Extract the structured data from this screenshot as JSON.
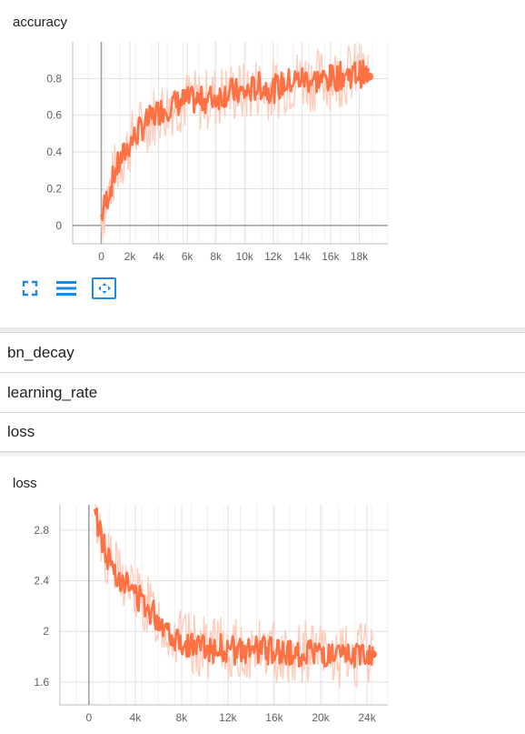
{
  "cards": [
    {
      "title": "accuracy",
      "chart_data": {
        "type": "line",
        "xlabel": "",
        "ylabel": "",
        "x_ticks": [
          "0",
          "2k",
          "4k",
          "6k",
          "8k",
          "10k",
          "12k",
          "14k",
          "16k",
          "18k"
        ],
        "y_ticks": [
          "0",
          "0.2",
          "0.4",
          "0.6",
          "0.8"
        ],
        "xlim": [
          -2000,
          20000
        ],
        "ylim": [
          -0.1,
          1.0
        ],
        "series": [
          {
            "color": "#ff7043",
            "raw_color": "#ffccbc",
            "x": [
              0,
              1000,
              2000,
              3000,
              4000,
              5000,
              6000,
              7000,
              8000,
              9000,
              10000,
              11000,
              12000,
              13000,
              14000,
              15000,
              16000,
              17000,
              18000,
              18700
            ],
            "y": [
              0.05,
              0.3,
              0.45,
              0.55,
              0.62,
              0.66,
              0.68,
              0.68,
              0.7,
              0.73,
              0.72,
              0.76,
              0.74,
              0.78,
              0.8,
              0.79,
              0.8,
              0.82,
              0.83,
              0.81
            ]
          }
        ]
      },
      "toolbar": {
        "expand_icon": "fullscreen-icon",
        "lines_icon": "data-lines-icon",
        "fit_icon": "fit-domain-icon"
      }
    },
    {
      "title": "loss",
      "chart_data": {
        "type": "line",
        "xlabel": "",
        "ylabel": "",
        "x_ticks": [
          "0",
          "4k",
          "8k",
          "12k",
          "16k",
          "20k",
          "24k"
        ],
        "y_ticks": [
          "1.6",
          "2",
          "2.4",
          "2.8"
        ],
        "xlim": [
          -2500,
          25800
        ],
        "ylim": [
          1.42,
          3.0
        ],
        "series": [
          {
            "color": "#ff7043",
            "raw_color": "#ffccbc",
            "x": [
              500,
              1500,
              2500,
              3500,
              4500,
              5500,
              6500,
              7500,
              8500,
              9500,
              10500,
              11500,
              12500,
              13500,
              14500,
              15500,
              16500,
              17500,
              18500,
              19500,
              20500,
              21500,
              22500,
              23500,
              24500
            ],
            "y": [
              2.95,
              2.6,
              2.45,
              2.35,
              2.25,
              2.15,
              2.05,
              1.95,
              1.9,
              1.88,
              1.86,
              1.87,
              1.85,
              1.83,
              1.86,
              1.85,
              1.84,
              1.82,
              1.83,
              1.85,
              1.8,
              1.78,
              1.8,
              1.82,
              1.82
            ]
          }
        ]
      }
    }
  ],
  "sections": [
    "bn_decay",
    "learning_rate",
    "loss"
  ]
}
